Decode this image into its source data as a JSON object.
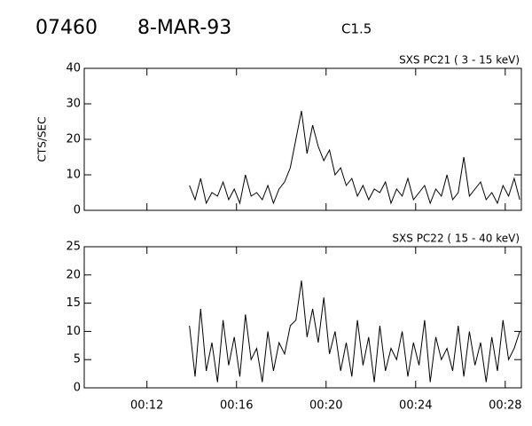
{
  "header": {
    "id": "07460",
    "date": "8-MAR-93",
    "class": "C1.5"
  },
  "chart_data": [
    {
      "type": "line",
      "title": "SXS PC21  (  3 - 15 keV)",
      "y_label": "CTS/SEC",
      "color": "#000000",
      "xlim": [
        9.2,
        28.72
      ],
      "ylim": [
        0,
        40
      ],
      "yticks": [
        0,
        10,
        20,
        30,
        40
      ],
      "x": [
        13.9,
        14.15,
        14.4,
        14.65,
        14.9,
        15.15,
        15.4,
        15.65,
        15.9,
        16.15,
        16.4,
        16.65,
        16.9,
        17.15,
        17.4,
        17.65,
        17.9,
        18.15,
        18.4,
        18.65,
        18.9,
        19.15,
        19.4,
        19.65,
        19.9,
        20.15,
        20.4,
        20.65,
        20.9,
        21.15,
        21.4,
        21.65,
        21.9,
        22.15,
        22.4,
        22.65,
        22.9,
        23.15,
        23.4,
        23.65,
        23.9,
        24.15,
        24.4,
        24.65,
        24.9,
        25.15,
        25.4,
        25.65,
        25.9,
        26.15,
        26.4,
        26.65,
        26.9,
        27.15,
        27.4,
        27.65,
        27.9,
        28.15,
        28.4,
        28.65
      ],
      "values": [
        7,
        3,
        9,
        2,
        5,
        4,
        8,
        3,
        6,
        2,
        10,
        4,
        5,
        3,
        7,
        2,
        6,
        8,
        12,
        20,
        28,
        16,
        24,
        18,
        14,
        17,
        10,
        12,
        7,
        9,
        4,
        7,
        3,
        6,
        5,
        8,
        2,
        6,
        4,
        9,
        3,
        5,
        7,
        2,
        6,
        4,
        10,
        3,
        5,
        15,
        4,
        6,
        8,
        3,
        5,
        2,
        7,
        4,
        9,
        3
      ]
    },
    {
      "type": "line",
      "title": "SXS PC22  ( 15 - 40 keV)",
      "color": "#000000",
      "xlim": [
        9.2,
        28.72
      ],
      "ylim": [
        0,
        25
      ],
      "yticks": [
        0,
        5,
        10,
        15,
        20,
        25
      ],
      "xticks": [
        {
          "value": 12,
          "label": "00:12"
        },
        {
          "value": 16,
          "label": "00:16"
        },
        {
          "value": 20,
          "label": "00:20"
        },
        {
          "value": 24,
          "label": "00:24"
        },
        {
          "value": 28,
          "label": "00:28"
        }
      ],
      "x": [
        13.9,
        14.15,
        14.4,
        14.65,
        14.9,
        15.15,
        15.4,
        15.65,
        15.9,
        16.15,
        16.4,
        16.65,
        16.9,
        17.15,
        17.4,
        17.65,
        17.9,
        18.15,
        18.4,
        18.65,
        18.9,
        19.15,
        19.4,
        19.65,
        19.9,
        20.15,
        20.4,
        20.65,
        20.9,
        21.15,
        21.4,
        21.65,
        21.9,
        22.15,
        22.4,
        22.65,
        22.9,
        23.15,
        23.4,
        23.65,
        23.9,
        24.15,
        24.4,
        24.65,
        24.9,
        25.15,
        25.4,
        25.65,
        25.9,
        26.15,
        26.4,
        26.65,
        26.9,
        27.15,
        27.4,
        27.65,
        27.9,
        28.15,
        28.4,
        28.65
      ],
      "values": [
        11,
        2,
        14,
        3,
        8,
        1,
        12,
        4,
        9,
        2,
        13,
        5,
        7,
        1,
        10,
        3,
        8,
        6,
        11,
        12,
        19,
        9,
        14,
        8,
        16,
        6,
        10,
        3,
        8,
        2,
        12,
        4,
        9,
        1,
        11,
        3,
        7,
        5,
        10,
        2,
        8,
        4,
        12,
        1,
        9,
        5,
        7,
        3,
        11,
        2,
        10,
        4,
        8,
        1,
        9,
        3,
        12,
        5,
        7,
        10
      ]
    }
  ]
}
